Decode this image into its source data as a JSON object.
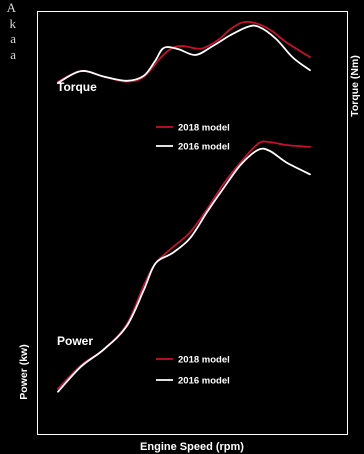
{
  "side_text": [
    "A",
    "k",
    "a",
    "a"
  ],
  "colors": {
    "model_2018": "#c8102e",
    "model_2016": "#ffffff",
    "background": "#000000",
    "frame": "#ffffff"
  },
  "chart_data": {
    "type": "line",
    "xlabel": "Engine Speed (rpm)",
    "ylabel_left": "Power (kw)",
    "ylabel_right": "Torque (Nm)",
    "grid": false,
    "axis_ticks": false,
    "xlim": [
      0,
      100
    ],
    "ylim": [
      0,
      100
    ],
    "panels": [
      {
        "name": "Torque",
        "legend": [
          {
            "label": "2018 model",
            "color": "#c8102e"
          },
          {
            "label": "2016 model",
            "color": "#ffffff"
          }
        ],
        "series": [
          {
            "name": "2018 model",
            "color": "#c8102e",
            "points": [
              [
                0,
                83.3
              ],
              [
                8,
                85.8
              ],
              [
                16,
                84.5
              ],
              [
                24,
                83.3
              ],
              [
                30,
                84.5
              ],
              [
                36,
                89.1
              ],
              [
                40,
                91.3
              ],
              [
                44,
                91.7
              ],
              [
                50,
                91.1
              ],
              [
                56,
                93.2
              ],
              [
                60,
                95.6
              ],
              [
                64,
                97.2
              ],
              [
                68,
                97.3
              ],
              [
                74,
                95.6
              ],
              [
                80,
                92.5
              ],
              [
                88,
                89.1
              ]
            ]
          },
          {
            "name": "2016 model",
            "color": "#ffffff",
            "points": [
              [
                0,
                83.0
              ],
              [
                8,
                85.8
              ],
              [
                16,
                84.5
              ],
              [
                24,
                83.5
              ],
              [
                30,
                84.7
              ],
              [
                34,
                88.3
              ],
              [
                37,
                91.3
              ],
              [
                42,
                91.0
              ],
              [
                48,
                89.6
              ],
              [
                54,
                91.7
              ],
              [
                60,
                94.2
              ],
              [
                66,
                96.2
              ],
              [
                70,
                96.3
              ],
              [
                76,
                93.5
              ],
              [
                82,
                89.0
              ],
              [
                88,
                86.0
              ]
            ]
          }
        ]
      },
      {
        "name": "Power",
        "legend": [
          {
            "label": "2018 model",
            "color": "#c8102e"
          },
          {
            "label": "2016 model",
            "color": "#ffffff"
          }
        ],
        "series": [
          {
            "name": "2018 model",
            "color": "#c8102e",
            "points": [
              [
                0,
                10.7
              ],
              [
                8,
                16.2
              ],
              [
                16,
                20.0
              ],
              [
                24,
                25.9
              ],
              [
                30,
                35.2
              ],
              [
                34,
                40.3
              ],
              [
                40,
                44.1
              ],
              [
                46,
                47.6
              ],
              [
                52,
                53.1
              ],
              [
                58,
                59.3
              ],
              [
                64,
                64.4
              ],
              [
                70,
                68.7
              ],
              [
                74,
                69.0
              ],
              [
                80,
                68.3
              ],
              [
                88,
                67.9
              ]
            ]
          },
          {
            "name": "2016 model",
            "color": "#ffffff",
            "points": [
              [
                0,
                10.0
              ],
              [
                8,
                15.9
              ],
              [
                16,
                20.0
              ],
              [
                24,
                25.5
              ],
              [
                30,
                34.1
              ],
              [
                34,
                40.3
              ],
              [
                40,
                42.8
              ],
              [
                46,
                46.2
              ],
              [
                52,
                52.4
              ],
              [
                58,
                58.3
              ],
              [
                64,
                63.8
              ],
              [
                70,
                67.2
              ],
              [
                74,
                66.9
              ],
              [
                80,
                64.1
              ],
              [
                88,
                61.4
              ]
            ]
          }
        ]
      }
    ]
  }
}
